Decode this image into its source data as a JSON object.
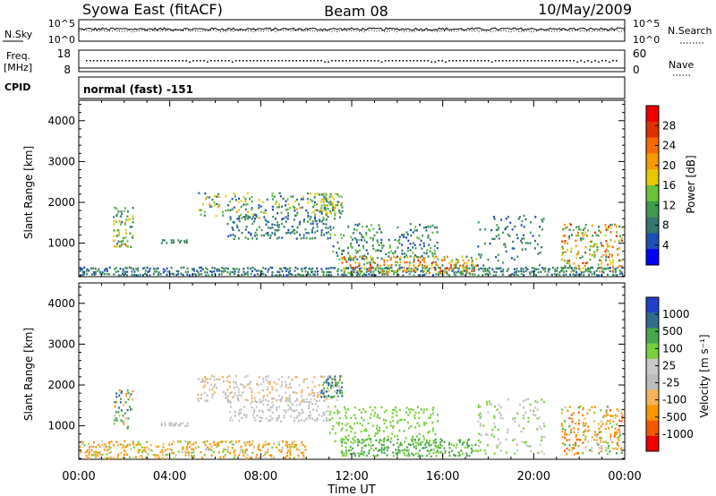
{
  "header": {
    "station": "Syowa East (fitACF)",
    "beam": "Beam 08",
    "date": "10/May/2009"
  },
  "noise_panel": {
    "left_label": "N.Sky",
    "right_label": "N.Search",
    "left_ticks": [
      "10^5",
      "10^0"
    ],
    "right_ticks": [
      "10^5",
      "10^0"
    ]
  },
  "freq_panel": {
    "left_label_1": "Freq.",
    "left_label_2": "[MHz]",
    "right_label": "Nave",
    "left_ticks": [
      "18",
      "8"
    ],
    "right_ticks": [
      "60",
      "0"
    ]
  },
  "cpid_panel": {
    "label": "CPID",
    "text": "normal (fast) -151"
  },
  "colors": {
    "power": [
      "#0000ff",
      "#1f4fb4",
      "#33776f",
      "#3f9a4e",
      "#6ac23a",
      "#e8c800",
      "#f59a00",
      "#f56a00",
      "#e03000",
      "#ee0000"
    ],
    "velocity": [
      "#ee0000",
      "#f35a00",
      "#f79500",
      "#f5b35a",
      "#bdbdbd",
      "#c8c8c8",
      "#79cf3c",
      "#4aa74e",
      "#2f6e8a",
      "#2040c8"
    ]
  },
  "chart_data": [
    {
      "type": "heatmap",
      "name_label": "Power",
      "ylabel": "Slant Range [km]",
      "xlabel": "",
      "ylim": [
        180,
        4500
      ],
      "y_ticks": [
        "1000",
        "2000",
        "3000",
        "4000"
      ],
      "x_ticks": [],
      "colorbar": {
        "label": "Power [dB]",
        "range": [
          0,
          32
        ],
        "tick_labels": [
          "4",
          "8",
          "12",
          "16",
          "20",
          "24",
          "28"
        ]
      },
      "scatter_regions": [
        {
          "t0": 0.0,
          "t1": 23.9,
          "r0": 200,
          "r1": 430,
          "v0": 4,
          "v1": 12,
          "density": 0.75
        },
        {
          "t0": 1.5,
          "t1": 2.4,
          "r0": 900,
          "r1": 1900,
          "v0": 6,
          "v1": 20,
          "density": 0.35
        },
        {
          "t0": 3.6,
          "t1": 4.8,
          "r0": 1000,
          "r1": 1100,
          "v0": 6,
          "v1": 12,
          "density": 0.8
        },
        {
          "t0": 5.2,
          "t1": 11.5,
          "r0": 1600,
          "r1": 2250,
          "v0": 4,
          "v1": 20,
          "density": 0.25
        },
        {
          "t0": 6.5,
          "t1": 11.0,
          "r0": 1100,
          "r1": 1700,
          "v0": 4,
          "v1": 12,
          "density": 0.35
        },
        {
          "t0": 10.6,
          "t1": 11.6,
          "r0": 1700,
          "r1": 2250,
          "v0": 8,
          "v1": 20,
          "density": 0.55
        },
        {
          "t0": 11.0,
          "t1": 15.8,
          "r0": 600,
          "r1": 1500,
          "v0": 4,
          "v1": 16,
          "density": 0.25
        },
        {
          "t0": 11.5,
          "t1": 17.5,
          "r0": 250,
          "r1": 700,
          "v0": 8,
          "v1": 28,
          "density": 0.45
        },
        {
          "t0": 17.5,
          "t1": 20.5,
          "r0": 300,
          "r1": 1700,
          "v0": 4,
          "v1": 12,
          "density": 0.15
        },
        {
          "t0": 21.2,
          "t1": 23.9,
          "r0": 300,
          "r1": 1500,
          "v0": 8,
          "v1": 28,
          "density": 0.35
        }
      ]
    },
    {
      "type": "heatmap",
      "name_label": "Velocity",
      "ylabel": "Slant Range [km]",
      "xlabel": "Time UT",
      "ylim": [
        180,
        4500
      ],
      "y_ticks": [
        "1000",
        "2000",
        "3000",
        "4000"
      ],
      "x_ticks": [
        "00:00",
        "04:00",
        "08:00",
        "12:00",
        "16:00",
        "20:00",
        "00:00"
      ],
      "colorbar": {
        "label": "Velocity [m s⁻¹]",
        "tick_labels": [
          "1000",
          "500",
          "100",
          "25",
          "-25",
          "-100",
          "-500",
          "-1000"
        ]
      },
      "scatter_regions": [
        {
          "t0": 0.0,
          "t1": 10.0,
          "r0": 200,
          "r1": 650,
          "v0": -300,
          "v1": 100,
          "density": 0.4
        },
        {
          "t0": 1.5,
          "t1": 2.4,
          "r0": 900,
          "r1": 1900,
          "v0": -200,
          "v1": 800,
          "density": 0.35
        },
        {
          "t0": 3.6,
          "t1": 4.8,
          "r0": 1000,
          "r1": 1100,
          "v0": -25,
          "v1": 25,
          "density": 0.8
        },
        {
          "t0": 5.2,
          "t1": 11.5,
          "r0": 1600,
          "r1": 2250,
          "v0": -60,
          "v1": 25,
          "density": 0.3
        },
        {
          "t0": 6.5,
          "t1": 11.0,
          "r0": 1100,
          "r1": 1700,
          "v0": -25,
          "v1": 25,
          "density": 0.35
        },
        {
          "t0": 10.6,
          "t1": 11.6,
          "r0": 1700,
          "r1": 2250,
          "v0": -25,
          "v1": 800,
          "density": 0.55
        },
        {
          "t0": 11.0,
          "t1": 15.8,
          "r0": 600,
          "r1": 1500,
          "v0": 25,
          "v1": 100,
          "density": 0.25
        },
        {
          "t0": 11.5,
          "t1": 17.5,
          "r0": 250,
          "r1": 700,
          "v0": 25,
          "v1": 250,
          "density": 0.45
        },
        {
          "t0": 17.5,
          "t1": 20.5,
          "r0": 300,
          "r1": 1700,
          "v0": -25,
          "v1": 60,
          "density": 0.15
        },
        {
          "t0": 21.2,
          "t1": 23.9,
          "r0": 300,
          "r1": 1500,
          "v0": -600,
          "v1": 200,
          "density": 0.35
        }
      ]
    }
  ]
}
